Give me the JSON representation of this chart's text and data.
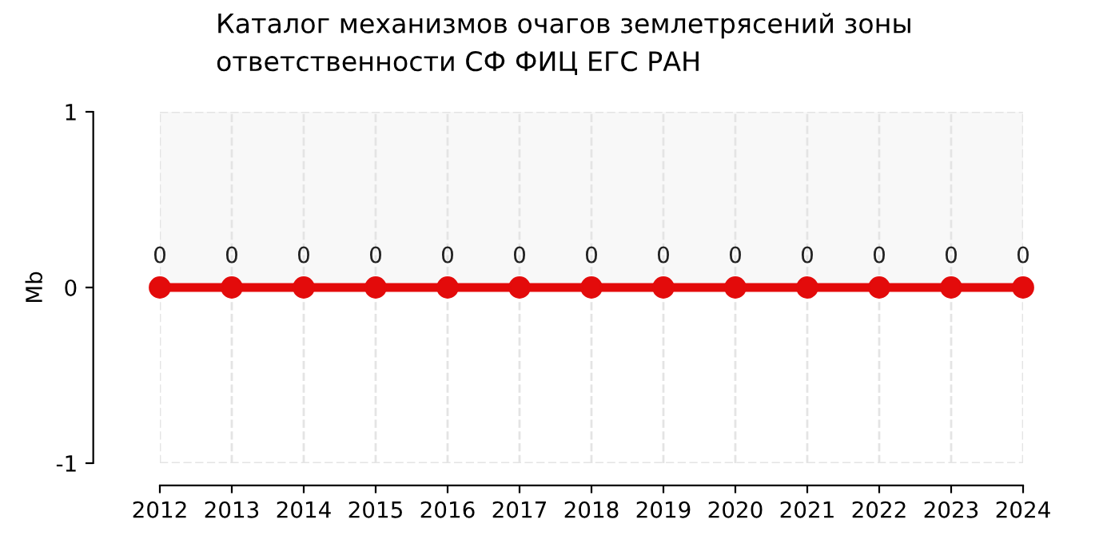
{
  "chart_data": {
    "type": "line",
    "title": "Каталог механизмов очагов землетрясений зоны\nответственности СФ ФИЦ ЕГС РАН",
    "ylabel": "Mb",
    "x": [
      2012,
      2013,
      2014,
      2015,
      2016,
      2017,
      2018,
      2019,
      2020,
      2021,
      2022,
      2023,
      2024
    ],
    "series": [
      {
        "color": "#e30b0b",
        "values": [
          0,
          0,
          0,
          0,
          0,
          0,
          0,
          0,
          0,
          0,
          0,
          0,
          0
        ]
      }
    ],
    "xlim": [
      2012,
      2024
    ],
    "xticks": [
      2012,
      2013,
      2014,
      2015,
      2016,
      2017,
      2018,
      2019,
      2020,
      2021,
      2022,
      2023,
      2024
    ],
    "ylim": [
      -1,
      1
    ],
    "yticks": [
      -1,
      0,
      1
    ],
    "bands": [
      {
        "axis": "y",
        "from": 0,
        "to": 1,
        "label": null,
        "color": "#f8f8f8"
      }
    ],
    "grid": "x",
    "marker": "circle",
    "line_style": "solid",
    "data_labels": true
  }
}
